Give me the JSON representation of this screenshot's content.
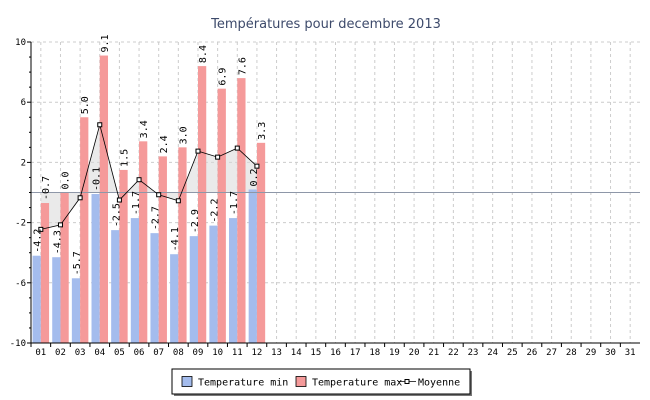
{
  "chart_data": {
    "type": "bar",
    "title": "Températures pour decembre 2013",
    "xlabel": "",
    "ylabel": "",
    "ylim": [
      -10,
      10
    ],
    "yticks": [
      -10,
      -6,
      -2,
      2,
      6,
      10
    ],
    "categories": [
      "01",
      "02",
      "03",
      "04",
      "05",
      "06",
      "07",
      "08",
      "09",
      "10",
      "11",
      "12",
      "13",
      "14",
      "15",
      "16",
      "17",
      "18",
      "19",
      "20",
      "21",
      "22",
      "23",
      "24",
      "25",
      "26",
      "27",
      "28",
      "29",
      "30",
      "31"
    ],
    "grid": true,
    "legend_position": "bottom",
    "series": [
      {
        "name": "Temperature min",
        "kind": "bar",
        "color": "#a4bced",
        "values": [
          -4.2,
          -4.3,
          -5.7,
          -0.1,
          -2.5,
          -1.7,
          -2.7,
          -4.1,
          -2.9,
          -2.2,
          -1.7,
          0.2,
          null,
          null,
          null,
          null,
          null,
          null,
          null,
          null,
          null,
          null,
          null,
          null,
          null,
          null,
          null,
          null,
          null,
          null,
          null
        ],
        "labels": [
          "-4.2",
          "-4.3",
          "-5.7",
          "-0.1",
          "-2.5",
          "-1.7",
          "-2.7",
          "-4.1",
          "-2.9",
          "-2.2",
          "-1.7",
          "0.2"
        ]
      },
      {
        "name": "Temperature max",
        "kind": "bar",
        "color": "#f59a9a",
        "values": [
          -0.7,
          0.0,
          5.0,
          9.1,
          1.5,
          3.4,
          2.4,
          3.0,
          8.4,
          6.9,
          7.6,
          3.3,
          null,
          null,
          null,
          null,
          null,
          null,
          null,
          null,
          null,
          null,
          null,
          null,
          null,
          null,
          null,
          null,
          null,
          null,
          null
        ],
        "labels": [
          "-0.7",
          "0.0",
          "5.0",
          "9.1",
          "1.5",
          "3.4",
          "2.4",
          "3.0",
          "8.4",
          "6.9",
          "7.6",
          "3.3"
        ]
      },
      {
        "name": "Moyenne",
        "kind": "line",
        "color": "#000000",
        "values": [
          -2.45,
          -2.15,
          -0.35,
          4.5,
          -0.5,
          0.85,
          -0.15,
          -0.55,
          2.75,
          2.35,
          2.95,
          1.75,
          null,
          null,
          null,
          null,
          null,
          null,
          null,
          null,
          null,
          null,
          null,
          null,
          null,
          null,
          null,
          null,
          null,
          null,
          null
        ]
      }
    ],
    "reference_line": 0
  }
}
